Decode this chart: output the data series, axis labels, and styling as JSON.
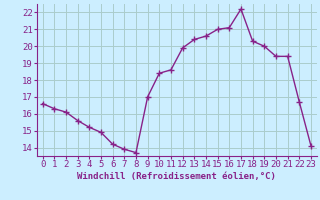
{
  "x": [
    0,
    1,
    2,
    3,
    4,
    5,
    6,
    7,
    8,
    9,
    10,
    11,
    12,
    13,
    14,
    15,
    16,
    17,
    18,
    19,
    20,
    21,
    22,
    23
  ],
  "y": [
    16.6,
    16.3,
    16.1,
    15.6,
    15.2,
    14.9,
    14.2,
    13.9,
    13.7,
    17.0,
    18.4,
    18.6,
    19.9,
    20.4,
    20.6,
    21.0,
    21.1,
    22.2,
    20.3,
    20.0,
    19.4,
    19.4,
    16.7,
    14.1
  ],
  "line_color": "#882288",
  "marker": "+",
  "markersize": 4,
  "linewidth": 1.0,
  "xlabel": "Windchill (Refroidissement éolien,°C)",
  "ylabel": "",
  "xlim": [
    -0.5,
    23.5
  ],
  "ylim": [
    13.5,
    22.5
  ],
  "yticks": [
    14,
    15,
    16,
    17,
    18,
    19,
    20,
    21,
    22
  ],
  "xticks": [
    0,
    1,
    2,
    3,
    4,
    5,
    6,
    7,
    8,
    9,
    10,
    11,
    12,
    13,
    14,
    15,
    16,
    17,
    18,
    19,
    20,
    21,
    22,
    23
  ],
  "bg_color": "#cceeff",
  "grid_color": "#aacccc",
  "tick_color": "#882288",
  "label_color": "#882288",
  "xlabel_fontsize": 6.5,
  "tick_fontsize": 6.5
}
